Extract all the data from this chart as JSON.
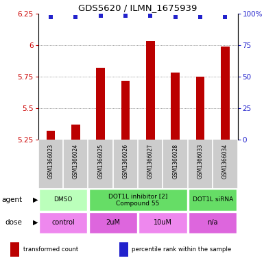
{
  "title": "GDS5620 / ILMN_1675939",
  "samples": [
    "GSM1366023",
    "GSM1366024",
    "GSM1366025",
    "GSM1366026",
    "GSM1366027",
    "GSM1366028",
    "GSM1366033",
    "GSM1366034"
  ],
  "bar_values": [
    5.32,
    5.37,
    5.82,
    5.72,
    6.03,
    5.78,
    5.75,
    5.99
  ],
  "percentile_values": [
    97,
    97,
    98,
    98,
    98,
    97,
    97,
    97
  ],
  "ylim": [
    5.25,
    6.25
  ],
  "yticks": [
    5.25,
    5.5,
    5.75,
    6.0,
    6.25
  ],
  "ytick_labels": [
    "5.25",
    "5.5",
    "5.75",
    "6",
    "6.25"
  ],
  "right_yticks": [
    0,
    25,
    50,
    75,
    100
  ],
  "right_ytick_labels": [
    "0",
    "25",
    "50",
    "75",
    "100%"
  ],
  "bar_color": "#bb0000",
  "dot_color": "#2222cc",
  "left_axis_color": "#cc0000",
  "right_axis_color": "#2222cc",
  "grid_color": "#555555",
  "agent_groups": [
    {
      "label": "DMSO",
      "start": 0,
      "end": 2,
      "color": "#bbffbb"
    },
    {
      "label": "DOT1L inhibitor [2]\nCompound 55",
      "start": 2,
      "end": 6,
      "color": "#66dd66"
    },
    {
      "label": "DOT1L siRNA",
      "start": 6,
      "end": 8,
      "color": "#66dd66"
    }
  ],
  "dose_groups": [
    {
      "label": "control",
      "start": 0,
      "end": 2,
      "color": "#ee88ee"
    },
    {
      "label": "2uM",
      "start": 2,
      "end": 4,
      "color": "#dd66dd"
    },
    {
      "label": "10uM",
      "start": 4,
      "end": 6,
      "color": "#ee88ee"
    },
    {
      "label": "n/a",
      "start": 6,
      "end": 8,
      "color": "#dd66dd"
    }
  ],
  "legend_items": [
    {
      "color": "#bb0000",
      "label": "transformed count"
    },
    {
      "color": "#2222cc",
      "label": "percentile rank within the sample"
    }
  ],
  "agent_label": "agent",
  "dose_label": "dose",
  "bg_color": "#ffffff",
  "sample_bg": "#cccccc",
  "sample_divider": "#ffffff"
}
